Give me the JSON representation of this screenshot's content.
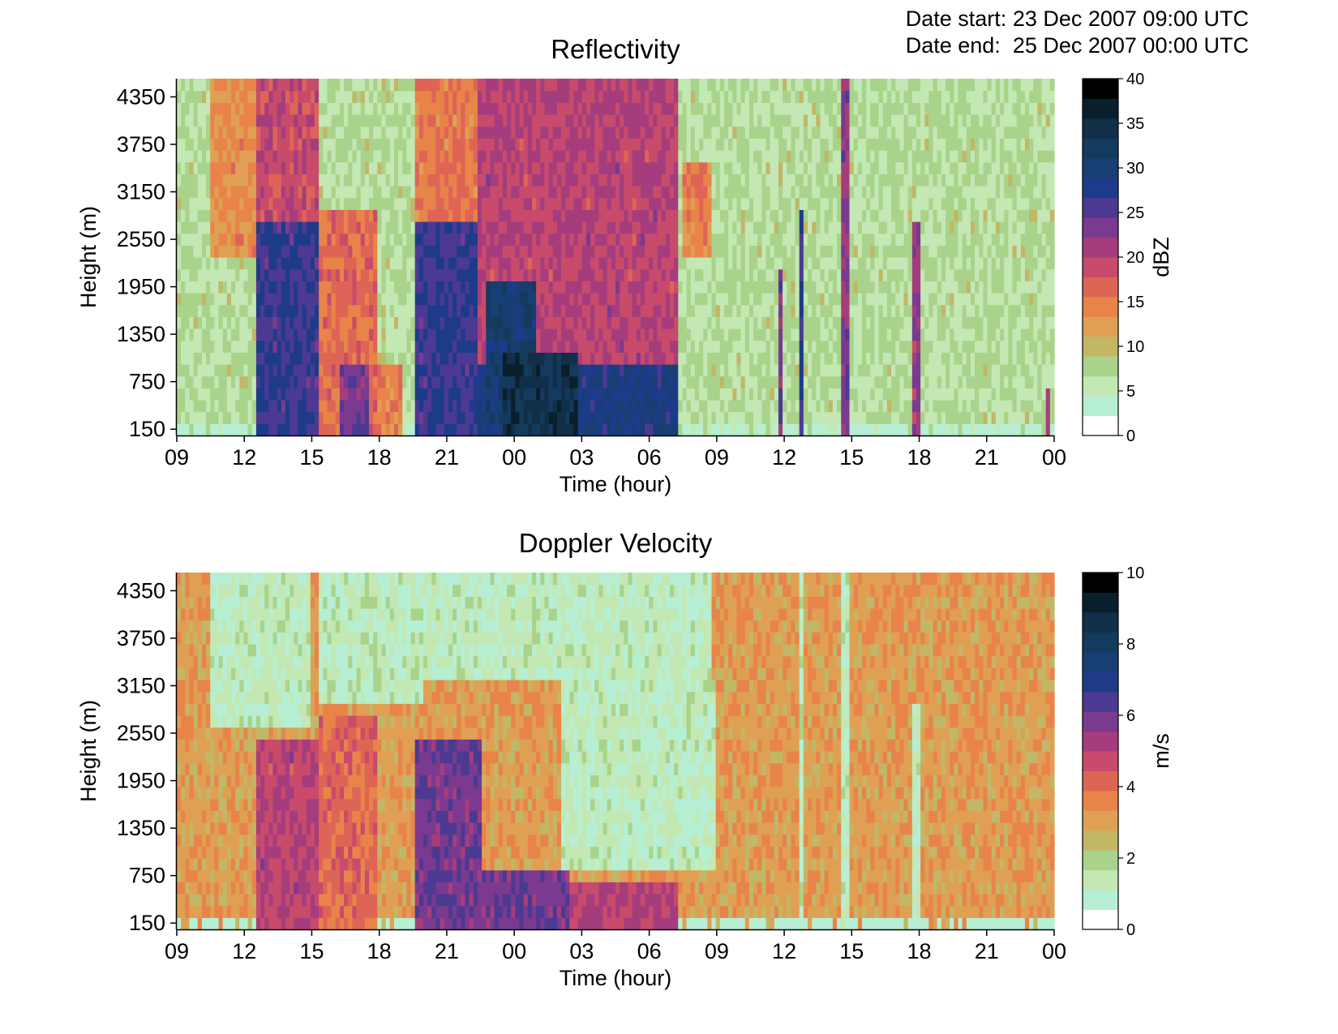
{
  "header": {
    "date_start_label": "Date start:",
    "date_start_value": "23 Dec 2007 09:00 UTC",
    "date_end_label": "Date end:",
    "date_end_value": "25 Dec 2007 00:00 UTC"
  },
  "palette": [
    "#ffffff",
    "#b6efd3",
    "#c3e8b4",
    "#a9d38a",
    "#c2b667",
    "#dfa053",
    "#e8844a",
    "#de6556",
    "#c84b6b",
    "#a53d7d",
    "#7a3a8f",
    "#4c3a92",
    "#1e3b8a",
    "#173f74",
    "#143a5d",
    "#112f48",
    "#0a1f2c",
    "#000000"
  ],
  "chart_data": [
    {
      "type": "heatmap",
      "title": "Reflectivity",
      "xlabel": "Time (hour)",
      "ylabel": "Height (m)",
      "x_ticks": [
        "09",
        "12",
        "15",
        "18",
        "21",
        "00",
        "03",
        "06",
        "09",
        "12",
        "15",
        "18",
        "21",
        "00"
      ],
      "x_range_hours": [
        0,
        39
      ],
      "y_ticks": [
        150,
        750,
        1350,
        1950,
        2550,
        3150,
        3750,
        4350
      ],
      "ylim": [
        70,
        4580
      ],
      "colorbar": {
        "label": "dBZ",
        "min": 0,
        "max": 40,
        "ticks": [
          0,
          5,
          10,
          15,
          20,
          25,
          30,
          35,
          40
        ]
      },
      "background_value": 6,
      "regions": [
        {
          "t": [
            1.5,
            4.0
          ],
          "h": [
            2400,
            4580
          ],
          "v": 13
        },
        {
          "t": [
            3.5,
            6.3
          ],
          "h": [
            800,
            4580
          ],
          "v": 19
        },
        {
          "t": [
            3.6,
            6.3
          ],
          "h": [
            70,
            2800
          ],
          "v": 27
        },
        {
          "t": [
            6.3,
            9.0
          ],
          "h": [
            70,
            3000
          ],
          "v": 16
        },
        {
          "t": [
            7.3,
            8.5
          ],
          "h": [
            70,
            1000
          ],
          "v": 24
        },
        {
          "t": [
            9.0,
            10.0
          ],
          "h": [
            70,
            1000
          ],
          "v": 14
        },
        {
          "t": [
            10.5,
            14.3
          ],
          "h": [
            2000,
            4580
          ],
          "v": 15
        },
        {
          "t": [
            10.5,
            13.3
          ],
          "h": [
            70,
            2800
          ],
          "v": 27
        },
        {
          "t": [
            13.3,
            22.3
          ],
          "h": [
            1000,
            4580
          ],
          "v": 20
        },
        {
          "t": [
            13.3,
            22.3
          ],
          "h": [
            70,
            1000
          ],
          "v": 29
        },
        {
          "t": [
            13.7,
            16.0
          ],
          "h": [
            70,
            2000
          ],
          "v": 31
        },
        {
          "t": [
            14.5,
            17.8
          ],
          "h": [
            70,
            1100
          ],
          "v": 35
        },
        {
          "t": [
            22.5,
            23.8
          ],
          "h": [
            2400,
            3500
          ],
          "v": 14
        },
        {
          "t": [
            26.8,
            27.0
          ],
          "h": [
            70,
            2200
          ],
          "v": 24
        },
        {
          "t": [
            27.6,
            27.9
          ],
          "h": [
            70,
            3000
          ],
          "v": 27
        },
        {
          "t": [
            29.6,
            29.9
          ],
          "h": [
            70,
            4580
          ],
          "v": 23
        },
        {
          "t": [
            32.7,
            33.0
          ],
          "h": [
            70,
            2800
          ],
          "v": 22
        },
        {
          "t": [
            38.7,
            38.8
          ],
          "h": [
            70,
            600
          ],
          "v": 21
        }
      ]
    },
    {
      "type": "heatmap",
      "title": "Doppler Velocity",
      "xlabel": "Time (hour)",
      "ylabel": "Height (m)",
      "x_ticks": [
        "09",
        "12",
        "15",
        "18",
        "21",
        "00",
        "03",
        "06",
        "09",
        "12",
        "15",
        "18",
        "21",
        "00"
      ],
      "x_range_hours": [
        0,
        39
      ],
      "y_ticks": [
        150,
        750,
        1350,
        1950,
        2550,
        3150,
        3750,
        4350
      ],
      "ylim": [
        70,
        4580
      ],
      "colorbar": {
        "label": "m/s",
        "min": 0,
        "max": 10,
        "ticks": [
          0,
          2,
          4,
          6,
          8,
          10
        ]
      },
      "background_value": 3,
      "regions": [
        {
          "t": [
            1.5,
            6.0
          ],
          "h": [
            2600,
            4580
          ],
          "v": 1
        },
        {
          "t": [
            6.3,
            11.0
          ],
          "h": [
            2900,
            4580
          ],
          "v": 1
        },
        {
          "t": [
            11.0,
            23.8
          ],
          "h": [
            3300,
            4580
          ],
          "v": 1
        },
        {
          "t": [
            17.0,
            24.0
          ],
          "h": [
            800,
            3300
          ],
          "v": 1
        },
        {
          "t": [
            3.6,
            6.3
          ],
          "h": [
            70,
            2500
          ],
          "v": 5
        },
        {
          "t": [
            6.3,
            9.0
          ],
          "h": [
            70,
            2800
          ],
          "v": 4
        },
        {
          "t": [
            10.5,
            13.5
          ],
          "h": [
            70,
            2500
          ],
          "v": 6
        },
        {
          "t": [
            13.5,
            17.5
          ],
          "h": [
            70,
            800
          ],
          "v": 6
        },
        {
          "t": [
            17.5,
            22.3
          ],
          "h": [
            70,
            700
          ],
          "v": 5
        },
        {
          "t": [
            27.6,
            27.9
          ],
          "h": [
            70,
            4580
          ],
          "v": 1
        },
        {
          "t": [
            29.6,
            29.9
          ],
          "h": [
            70,
            4580
          ],
          "v": 1
        },
        {
          "t": [
            32.7,
            33.0
          ],
          "h": [
            70,
            3000
          ],
          "v": 1
        }
      ]
    }
  ]
}
